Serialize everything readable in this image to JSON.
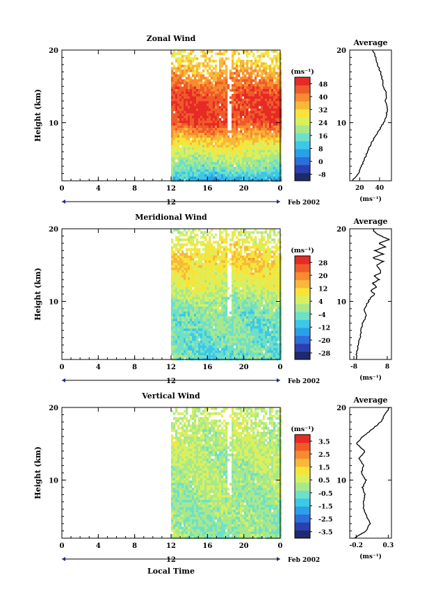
{
  "figure": {
    "date_label": "Feb 2002",
    "x_axis_title": "Local Time",
    "date_marker": "12",
    "avg_units": "(ms⁻¹)",
    "cb_units": "(ms⁻¹)",
    "y_axis_title": "Height (km)"
  },
  "chart_data": [
    {
      "type": "heatmap",
      "title": "Zonal Wind",
      "xlabel": "",
      "ylabel": "Height (km)",
      "x_ticks": [
        "0",
        "4",
        "8",
        "12",
        "16",
        "20",
        "0"
      ],
      "x_range_hours": [
        0,
        24
      ],
      "data_start_hour": 12,
      "y_ticks": [
        "10",
        "20"
      ],
      "ylim": [
        2,
        20
      ],
      "colorbar_ticks": [
        "-8",
        "0",
        "8",
        "16",
        "24",
        "32",
        "40",
        "48"
      ],
      "colorbar_range": [
        -12,
        52
      ],
      "profile_by_height": [
        {
          "h": 2,
          "v": 4
        },
        {
          "h": 3,
          "v": 12
        },
        {
          "h": 4,
          "v": 17
        },
        {
          "h": 5,
          "v": 21
        },
        {
          "h": 6,
          "v": 25
        },
        {
          "h": 7,
          "v": 29
        },
        {
          "h": 8,
          "v": 34
        },
        {
          "h": 9,
          "v": 40
        },
        {
          "h": 10,
          "v": 45
        },
        {
          "h": 11,
          "v": 48
        },
        {
          "h": 12,
          "v": 47
        },
        {
          "h": 13,
          "v": 46
        },
        {
          "h": 14,
          "v": 45
        },
        {
          "h": 15,
          "v": 43
        },
        {
          "h": 16,
          "v": 40
        },
        {
          "h": 17,
          "v": 37
        },
        {
          "h": 18,
          "v": 34
        },
        {
          "h": 19,
          "v": 31
        },
        {
          "h": 20,
          "v": 30
        }
      ],
      "average": {
        "title": "Average",
        "x_ticks": [
          "20",
          "40"
        ],
        "xlim": [
          10,
          52
        ],
        "x_label": "(ms⁻¹)",
        "y_ticks": [
          "10",
          "20"
        ],
        "ylim": [
          2,
          20
        ],
        "points": [
          {
            "x": 12,
            "h": 2
          },
          {
            "x": 18,
            "h": 2.8
          },
          {
            "x": 22,
            "h": 4
          },
          {
            "x": 25,
            "h": 5
          },
          {
            "x": 28,
            "h": 6
          },
          {
            "x": 31,
            "h": 7
          },
          {
            "x": 35,
            "h": 8
          },
          {
            "x": 40,
            "h": 9
          },
          {
            "x": 44,
            "h": 10
          },
          {
            "x": 47,
            "h": 11
          },
          {
            "x": 48,
            "h": 12
          },
          {
            "x": 46,
            "h": 13
          },
          {
            "x": 47,
            "h": 14
          },
          {
            "x": 44,
            "h": 15
          },
          {
            "x": 43,
            "h": 16
          },
          {
            "x": 41,
            "h": 17
          },
          {
            "x": 38,
            "h": 18
          },
          {
            "x": 36,
            "h": 19
          },
          {
            "x": 33,
            "h": 20
          }
        ]
      }
    },
    {
      "type": "heatmap",
      "title": "Meridional Wind",
      "xlabel": "",
      "ylabel": "Height (km)",
      "x_ticks": [
        "0",
        "4",
        "8",
        "12",
        "16",
        "20",
        "0"
      ],
      "x_range_hours": [
        0,
        24
      ],
      "data_start_hour": 12,
      "y_ticks": [
        "10",
        "20"
      ],
      "ylim": [
        2,
        20
      ],
      "colorbar_ticks": [
        "-28",
        "-20",
        "-12",
        "-4",
        "4",
        "12",
        "20",
        "28"
      ],
      "colorbar_range": [
        -32,
        32
      ],
      "profile_by_height": [
        {
          "h": 2,
          "v": -6
        },
        {
          "h": 4,
          "v": -5
        },
        {
          "h": 6,
          "v": -4
        },
        {
          "h": 8,
          "v": -3
        },
        {
          "h": 10,
          "v": -1
        },
        {
          "h": 11,
          "v": 2
        },
        {
          "h": 12,
          "v": 4
        },
        {
          "h": 13,
          "v": 6
        },
        {
          "h": 14,
          "v": 8
        },
        {
          "h": 15,
          "v": 10
        },
        {
          "h": 16,
          "v": 12
        },
        {
          "h": 17,
          "v": 10
        },
        {
          "h": 18,
          "v": 8
        },
        {
          "h": 19,
          "v": 6
        },
        {
          "h": 20,
          "v": 4
        }
      ],
      "average": {
        "title": "Average",
        "x_ticks": [
          "-8",
          "8"
        ],
        "xlim": [
          -10,
          10
        ],
        "x_label": "(ms⁻¹)",
        "y_ticks": [
          "10",
          "20"
        ],
        "ylim": [
          2,
          20
        ],
        "points": [
          {
            "x": -7,
            "h": 2
          },
          {
            "x": -6.5,
            "h": 3
          },
          {
            "x": -6,
            "h": 4
          },
          {
            "x": -5,
            "h": 5
          },
          {
            "x": -4.5,
            "h": 6
          },
          {
            "x": -4,
            "h": 7
          },
          {
            "x": -2,
            "h": 8
          },
          {
            "x": -3,
            "h": 9
          },
          {
            "x": -1,
            "h": 10
          },
          {
            "x": 0,
            "h": 10.5
          },
          {
            "x": 2,
            "h": 11
          },
          {
            "x": 0,
            "h": 11.5
          },
          {
            "x": 3,
            "h": 12
          },
          {
            "x": 1,
            "h": 12.5
          },
          {
            "x": 4,
            "h": 13
          },
          {
            "x": 2,
            "h": 13.5
          },
          {
            "x": 5,
            "h": 14
          },
          {
            "x": 3,
            "h": 15
          },
          {
            "x": 6,
            "h": 15.5
          },
          {
            "x": 1,
            "h": 16
          },
          {
            "x": 6,
            "h": 16.5
          },
          {
            "x": 2,
            "h": 17
          },
          {
            "x": 7,
            "h": 17.5
          },
          {
            "x": 4,
            "h": 18
          },
          {
            "x": 9,
            "h": 18.5
          },
          {
            "x": 5,
            "h": 19
          },
          {
            "x": 2,
            "h": 19.5
          },
          {
            "x": 1,
            "h": 20
          }
        ]
      }
    },
    {
      "type": "heatmap",
      "title": "Vertical Wind",
      "xlabel": "Local Time",
      "ylabel": "Height (km)",
      "x_ticks": [
        "0",
        "4",
        "8",
        "12",
        "16",
        "20",
        "0"
      ],
      "x_range_hours": [
        0,
        24
      ],
      "data_start_hour": 12,
      "y_ticks": [
        "10",
        "20"
      ],
      "ylim": [
        2,
        20
      ],
      "colorbar_ticks": [
        "-3.5",
        "-2.5",
        "-1.5",
        "-0.5",
        "0.5",
        "1.5",
        "2.5",
        "3.5"
      ],
      "colorbar_range": [
        -4,
        4
      ],
      "profile_by_height": [
        {
          "h": 2,
          "v": -0.2
        },
        {
          "h": 5,
          "v": -0.1
        },
        {
          "h": 8,
          "v": 0.0
        },
        {
          "h": 11,
          "v": 0.1
        },
        {
          "h": 14,
          "v": 0.2
        },
        {
          "h": 17,
          "v": 0.3
        },
        {
          "h": 20,
          "v": 0.5
        }
      ],
      "average": {
        "title": "Average",
        "x_ticks": [
          "-0.2",
          "0.3"
        ],
        "xlim": [
          -0.3,
          0.35
        ],
        "x_label": "(ms⁻¹)",
        "y_ticks": [
          "10",
          "20"
        ],
        "ylim": [
          2,
          20
        ],
        "points": [
          {
            "x": -0.22,
            "h": 2
          },
          {
            "x": -0.05,
            "h": 3
          },
          {
            "x": 0.02,
            "h": 4
          },
          {
            "x": -0.04,
            "h": 5
          },
          {
            "x": -0.08,
            "h": 6
          },
          {
            "x": -0.09,
            "h": 7
          },
          {
            "x": -0.06,
            "h": 8
          },
          {
            "x": -0.1,
            "h": 9
          },
          {
            "x": -0.05,
            "h": 10
          },
          {
            "x": -0.12,
            "h": 11
          },
          {
            "x": -0.08,
            "h": 12
          },
          {
            "x": -0.15,
            "h": 13
          },
          {
            "x": -0.06,
            "h": 14
          },
          {
            "x": -0.2,
            "h": 15
          },
          {
            "x": -0.1,
            "h": 16
          },
          {
            "x": 0.05,
            "h": 17
          },
          {
            "x": 0.18,
            "h": 18
          },
          {
            "x": 0.25,
            "h": 19
          },
          {
            "x": 0.32,
            "h": 20
          }
        ]
      }
    }
  ],
  "colormap": [
    "#1f2a6b",
    "#2b3fb0",
    "#2c6fd8",
    "#2aa0e8",
    "#3cc8e8",
    "#6ee0c8",
    "#a8e88c",
    "#d8f060",
    "#f8e438",
    "#f8b83a",
    "#f88a30",
    "#f05a2a",
    "#e62a26"
  ]
}
